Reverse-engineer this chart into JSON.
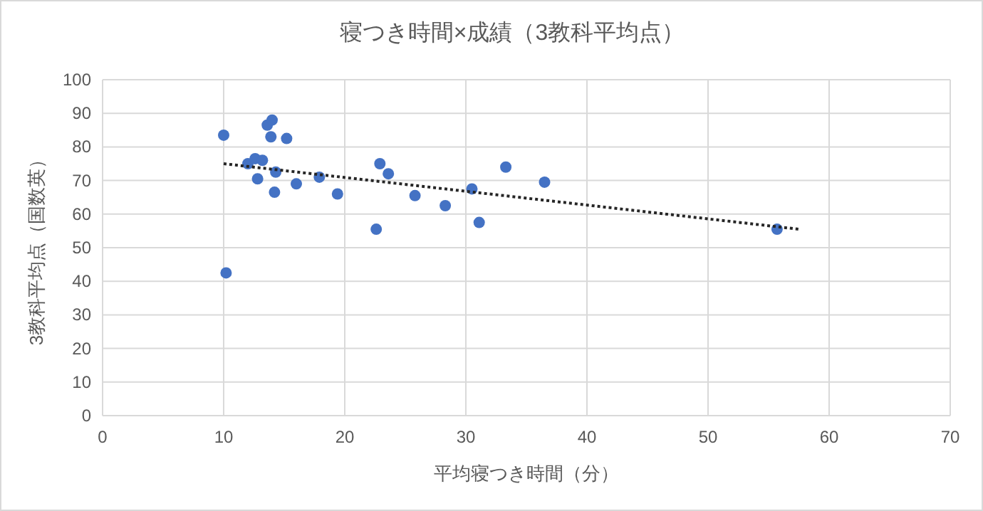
{
  "chart_data": {
    "type": "scatter",
    "title": "寝つき時間×成績（3教科平均点）",
    "xlabel": "平均寝つき時間（分）",
    "ylabel": "3教科平均点（国数英）",
    "xlim": [
      0,
      70
    ],
    "xticks": [
      0,
      10,
      20,
      30,
      40,
      50,
      60,
      70
    ],
    "ylim": [
      0,
      100
    ],
    "yticks": [
      0,
      10,
      20,
      30,
      40,
      50,
      60,
      70,
      80,
      90,
      100
    ],
    "grid": true,
    "marker": "circle",
    "series": [
      {
        "type": "scatter",
        "color": "#4472c4",
        "x": [
          10,
          10.2,
          12,
          12.6,
          12.8,
          13.2,
          13.6,
          14,
          13.9,
          14.3,
          14.2,
          15.2,
          16,
          17.9,
          19.4,
          22.6,
          22.9,
          23.6,
          25.8,
          28.3,
          30.5,
          31.1,
          33.3,
          36.5,
          55.7
        ],
        "values": [
          83.5,
          42.5,
          75,
          76.5,
          70.5,
          76,
          86.5,
          88,
          83,
          72.5,
          66.5,
          82.5,
          69,
          71,
          66,
          55.5,
          75,
          72,
          65.5,
          62.5,
          67.5,
          57.5,
          74,
          69.5,
          55.5
        ]
      },
      {
        "type": "line",
        "color": "#262626",
        "line_style": "dotted",
        "marker": "none",
        "x": [
          10,
          57.5
        ],
        "values": [
          75,
          55.5
        ]
      }
    ]
  }
}
